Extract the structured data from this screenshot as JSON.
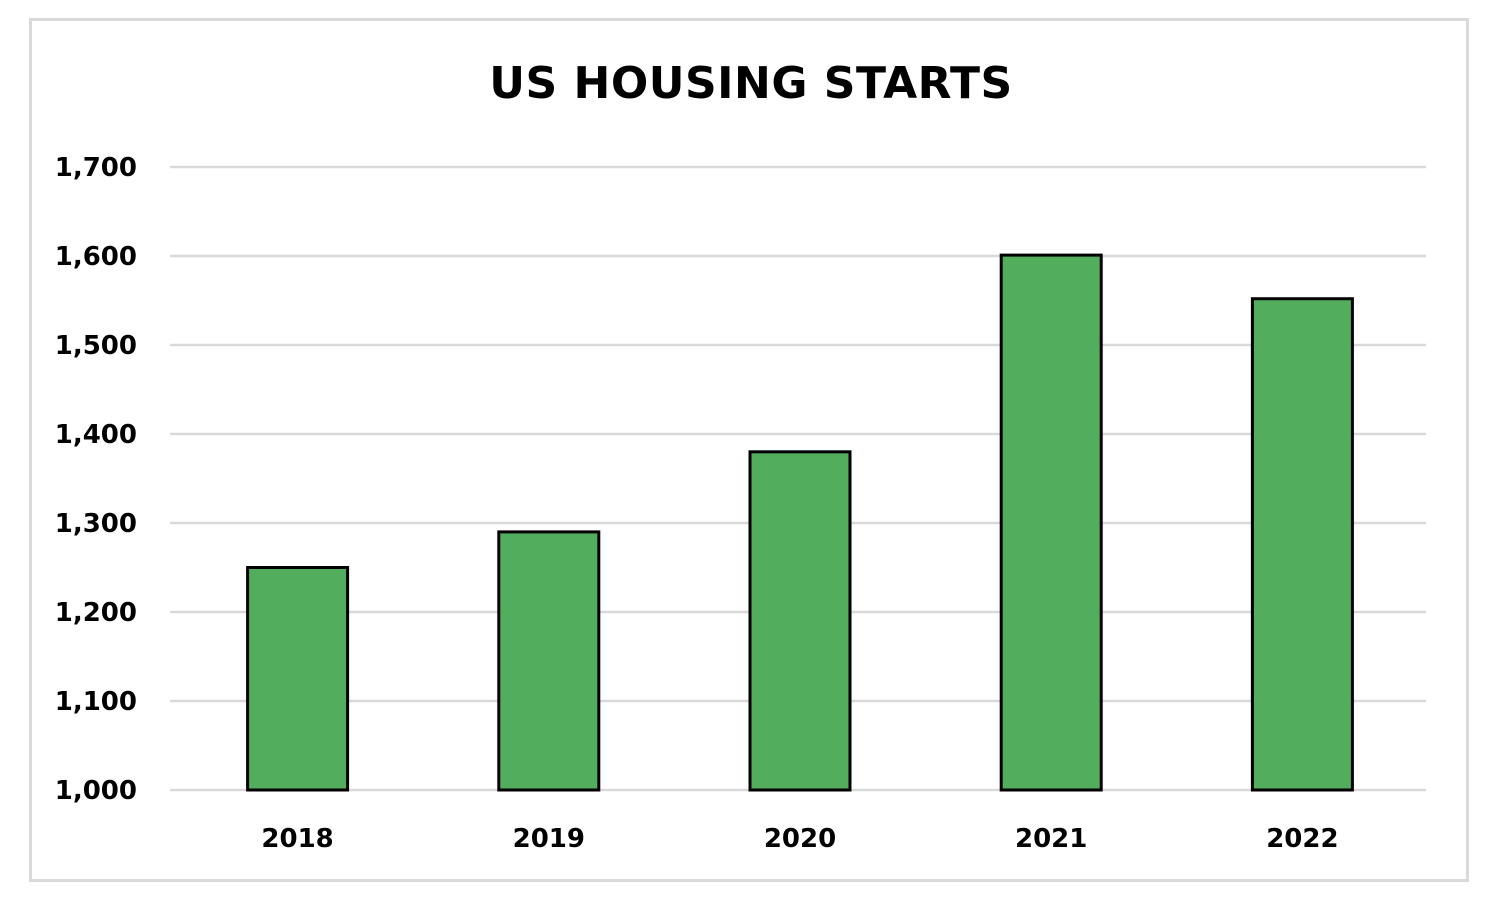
{
  "chart_data": {
    "type": "bar",
    "title": "US HOUSING STARTS",
    "xlabel": "",
    "ylabel": "",
    "categories": [
      "2018",
      "2019",
      "2020",
      "2021",
      "2022"
    ],
    "values": [
      1250,
      1290,
      1380,
      1601,
      1552
    ],
    "ylim": [
      1000,
      1700
    ],
    "yticks": [
      1000,
      1100,
      1200,
      1300,
      1400,
      1500,
      1600,
      1700
    ],
    "ytick_labels": [
      "1,000",
      "1,100",
      "1,200",
      "1,300",
      "1,400",
      "1,500",
      "1,600",
      "1,700"
    ],
    "grid": true,
    "legend": "none",
    "colors": {
      "bar_fill": "#52ad5c",
      "bar_stroke": "#000000",
      "grid": "#d9d9d9"
    }
  }
}
